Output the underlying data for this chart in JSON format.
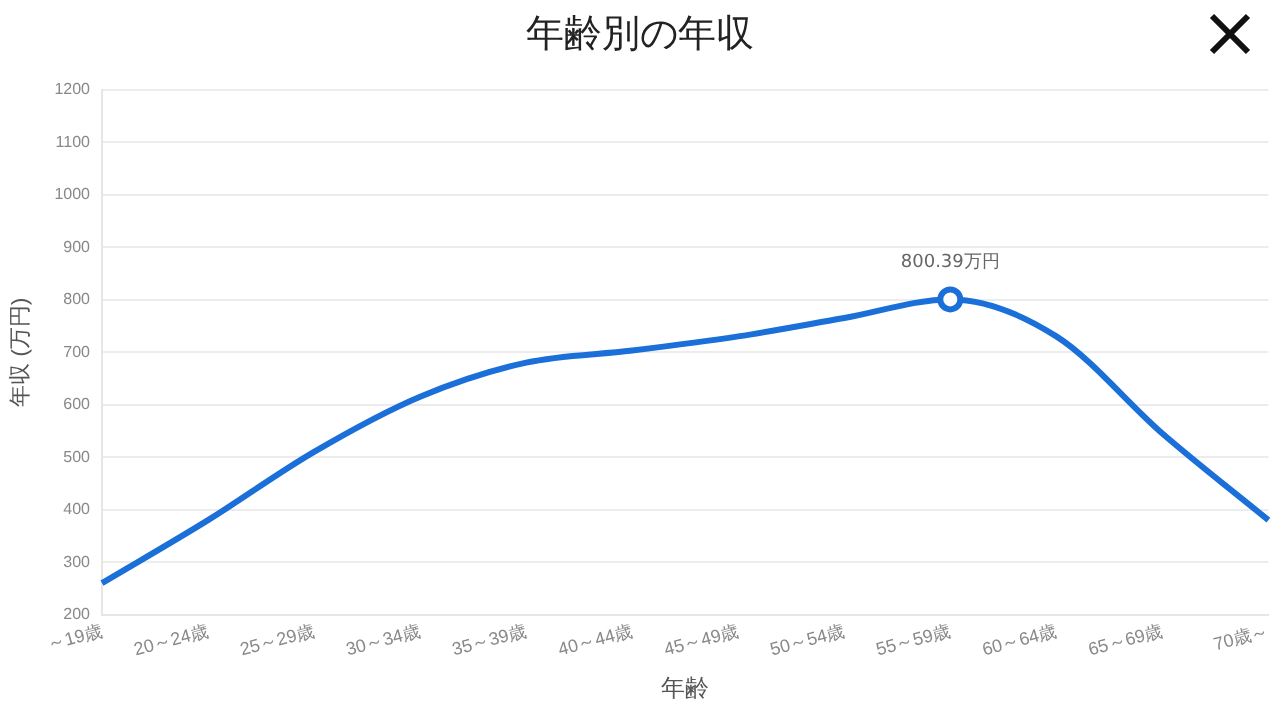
{
  "chart_data": {
    "type": "line",
    "title": "年齢別の年収",
    "xlabel": "年齢",
    "ylabel": "年収 (万円)",
    "categories": [
      "～19歳",
      "20～24歳",
      "25～29歳",
      "30～34歳",
      "35～39歳",
      "40～44歳",
      "45～49歳",
      "50～54歳",
      "55～59歳",
      "60～64歳",
      "65～69歳",
      "70歳～"
    ],
    "series": [
      {
        "color": "#1a6fd8",
        "values": [
          260,
          380,
          510,
          615,
          680,
          703,
          730,
          765,
          800.39,
          730,
          545,
          380
        ],
        "value_labels": [
          null,
          null,
          null,
          null,
          null,
          null,
          null,
          null,
          "800.39万円",
          null,
          null,
          null
        ]
      }
    ],
    "ylim": [
      200,
      1200
    ],
    "yticks": [
      200,
      300,
      400,
      500,
      600,
      700,
      800,
      900,
      1000,
      1100,
      1200
    ],
    "grid": "y",
    "legend": false,
    "marker": "none",
    "line_style": "solid"
  }
}
